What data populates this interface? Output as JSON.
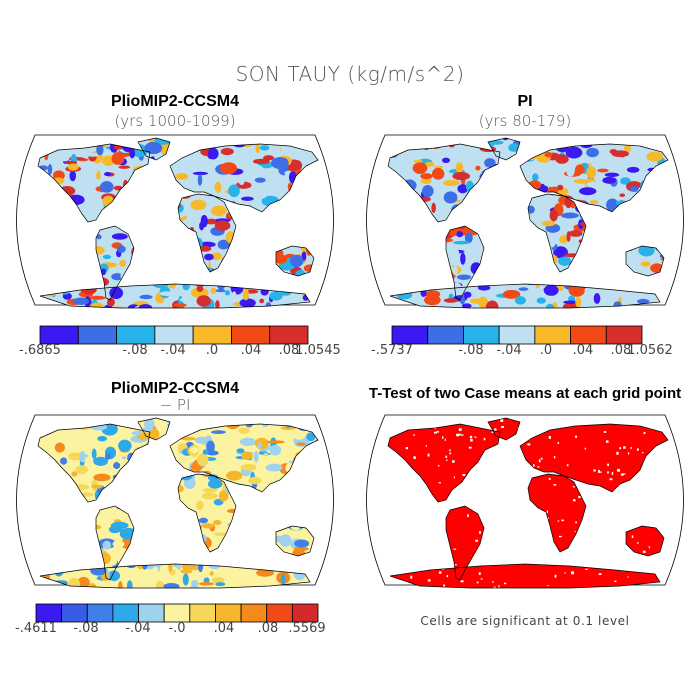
{
  "figure_title": "SON TAUY (kg/m/s^2)",
  "colors": {
    "scale11": [
      "#3a1af0",
      "#3a5ae8",
      "#3f80e8",
      "#2ea8e8",
      "#9fd2ee",
      "#fbf3a0",
      "#f7d75a",
      "#f7b52b",
      "#f58a1c",
      "#f04a18",
      "#d52a2a"
    ],
    "scale7": [
      "#3a1af0",
      "#3d6ee6",
      "#27b2ea",
      "#bfe0f0",
      "#f7b82a",
      "#f24a17",
      "#d62d2d"
    ],
    "significant": "#ff0000",
    "outline": "#000000"
  },
  "panels": [
    {
      "id": "case",
      "title": "PlioMIP2-CCSM4",
      "subtitle": "(yrs 1000-1099)",
      "colorbar": {
        "min_label": "-.6865",
        "labels": [
          "-.08",
          "-.04",
          ".0",
          ".04",
          ".08",
          "1.0545"
        ]
      }
    },
    {
      "id": "control",
      "title": "PI",
      "subtitle": "(yrs 80-179)",
      "colorbar": {
        "min_label": "-.5737",
        "labels": [
          "-.08",
          "-.04",
          ".0",
          ".04",
          ".08",
          "1.0562"
        ]
      }
    },
    {
      "id": "difference",
      "title": "PlioMIP2-CCSM4",
      "subtitle": "− PI",
      "colorbar": {
        "min_label": "-.4611",
        "labels": [
          "-.08",
          "-.04",
          "-.0",
          ".04",
          ".08",
          ".5569"
        ]
      }
    },
    {
      "id": "ttest",
      "title": "T-Test of two Case means at each grid point",
      "note": "Cells are significant at 0.1 level"
    }
  ]
}
